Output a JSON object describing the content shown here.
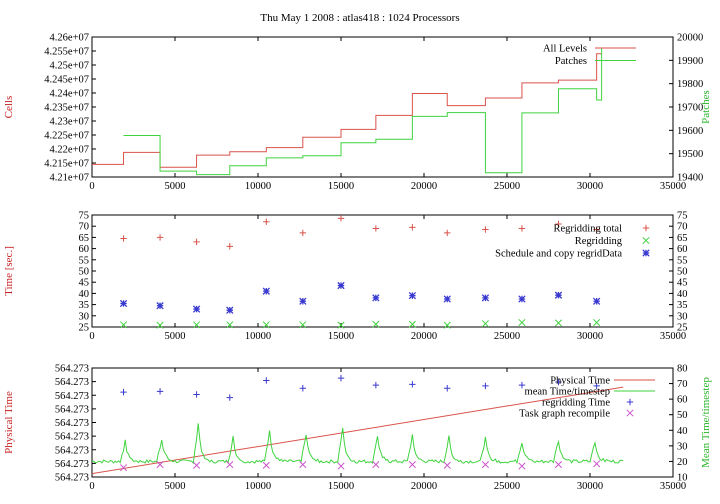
{
  "figure_title": "Thu May 1 2008 : atlas418 : 1024 Processors",
  "colors": {
    "red": "#d9534a",
    "green": "#3fd33f",
    "blue": "#3a3ad0",
    "magenta": "#cc55cc",
    "axis_label_red": "#c82020",
    "axis_label_green": "#28b428"
  },
  "chart_data": [
    {
      "id": "cells",
      "type": "line",
      "ylabel": "Cells",
      "y2label": "Patches",
      "xlim": [
        0,
        35000
      ],
      "ylim": [
        42100000,
        42600000
      ],
      "y2lim": [
        19400,
        20000
      ],
      "xticks": [
        "0",
        "5000",
        "10000",
        "15000",
        "20000",
        "25000",
        "30000",
        "35000"
      ],
      "yticks": [
        "4.21e+07",
        "4.215e+07",
        "4.22e+07",
        "4.225e+07",
        "4.23e+07",
        "4.235e+07",
        "4.24e+07",
        "4.245e+07",
        "4.25e+07",
        "4.255e+07",
        "4.26e+07"
      ],
      "y2ticks": [
        "19400",
        "19500",
        "19600",
        "19700",
        "19800",
        "19900",
        "20000"
      ],
      "legend_position": "top-right",
      "series": [
        {
          "name": "All Levels",
          "color": "red",
          "axis": "y",
          "step": true,
          "x": [
            0,
            1900,
            4100,
            6300,
            8300,
            10500,
            12700,
            15000,
            17100,
            19300,
            21400,
            23700,
            25900,
            28100,
            30400,
            30700
          ],
          "y": [
            42145000,
            42188000,
            42135000,
            42178000,
            42190000,
            42205000,
            42242000,
            42270000,
            42320000,
            42398000,
            42355000,
            42382000,
            42436000,
            42446000,
            42540000,
            42540000
          ]
        },
        {
          "name": "Patches",
          "color": "green",
          "axis": "y2",
          "step": true,
          "x": [
            1900,
            4100,
            6300,
            8300,
            10500,
            12700,
            15000,
            17100,
            19300,
            21400,
            23700,
            25900,
            28100,
            30400,
            30700
          ],
          "y": [
            19578,
            19425,
            19410,
            19448,
            19482,
            19491,
            19547,
            19562,
            19660,
            19676,
            19418,
            19675,
            19778,
            19730,
            19955
          ]
        }
      ]
    },
    {
      "id": "time",
      "type": "scatter",
      "ylabel": "Time [sec.]",
      "xlim": [
        0,
        35000
      ],
      "ylim": [
        25,
        75
      ],
      "xticks": [
        "0",
        "5000",
        "10000",
        "15000",
        "20000",
        "25000",
        "30000",
        "35000"
      ],
      "yticks": [
        "25",
        "30",
        "35",
        "40",
        "45",
        "50",
        "55",
        "60",
        "65",
        "70",
        "75"
      ],
      "legend_position": "top-right",
      "x": [
        1900,
        4100,
        6300,
        8300,
        10500,
        12700,
        15000,
        17100,
        19300,
        21400,
        23700,
        25900,
        28100,
        30400
      ],
      "series": [
        {
          "name": "Regridding total",
          "marker": "+",
          "color": "red",
          "values": [
            64.5,
            65,
            63,
            61,
            72,
            67,
            73.5,
            69,
            69.5,
            67,
            68.5,
            69,
            71,
            68.5
          ]
        },
        {
          "name": "Regridding",
          "marker": "x",
          "color": "green",
          "values": [
            26,
            25.8,
            26,
            26,
            26,
            26,
            25.8,
            26.2,
            26.2,
            25.8,
            26.5,
            27,
            26.8,
            27
          ]
        },
        {
          "name": "Schedule and copy regridData",
          "marker": "*",
          "color": "blue",
          "values": [
            35.5,
            34.5,
            33,
            32.5,
            41,
            36.5,
            43.5,
            38,
            39,
            37.5,
            38,
            37.5,
            39.2,
            36.5
          ]
        }
      ]
    },
    {
      "id": "physical",
      "type": "line",
      "ylabel": "Physical Time",
      "y2label": "Mean Time/timestep",
      "xlim": [
        0,
        35000
      ],
      "ylim": [
        0,
        8
      ],
      "y2lim": [
        10,
        80
      ],
      "xticks": [
        "0",
        "5000",
        "10000",
        "15000",
        "20000",
        "25000",
        "30000",
        "35000"
      ],
      "yticks": [
        "564.273",
        "564.273",
        "564.273",
        "564.273",
        "564.273",
        "564.273",
        "564.273",
        "564.273",
        "564.273"
      ],
      "y2ticks": [
        "10",
        "20",
        "30",
        "40",
        "50",
        "60",
        "70",
        "80"
      ],
      "legend_position": "top-right",
      "series": [
        {
          "name": "Physical Time",
          "color": "red",
          "axis": "y",
          "x": [
            0,
            32000
          ],
          "y": [
            0.25,
            6.6
          ]
        },
        {
          "name": "mean Time/timestep",
          "color": "green",
          "axis": "y2",
          "baseline": 20,
          "peaks": [
            {
              "x": 2000,
              "y": 33
            },
            {
              "x": 4200,
              "y": 36
            },
            {
              "x": 6400,
              "y": 45
            },
            {
              "x": 8500,
              "y": 36
            },
            {
              "x": 10700,
              "y": 42
            },
            {
              "x": 12900,
              "y": 38
            },
            {
              "x": 15100,
              "y": 42
            },
            {
              "x": 17200,
              "y": 38
            },
            {
              "x": 19300,
              "y": 37
            },
            {
              "x": 21500,
              "y": 36
            },
            {
              "x": 23700,
              "y": 35
            },
            {
              "x": 25900,
              "y": 34
            },
            {
              "x": 28100,
              "y": 35
            },
            {
              "x": 30300,
              "y": 33
            }
          ],
          "x_end": 32000
        },
        {
          "name": "regridding Time",
          "marker": "+",
          "color": "blue",
          "axis": "y2",
          "x": [
            1900,
            4100,
            6300,
            8300,
            10500,
            12700,
            15000,
            17100,
            19300,
            21400,
            23700,
            25900,
            28100,
            30400
          ],
          "values": [
            64.5,
            65,
            63,
            61,
            72,
            67,
            73.5,
            69,
            69.5,
            67,
            68.5,
            69,
            71,
            68.5
          ]
        },
        {
          "name": "Task graph recompile",
          "marker": "x",
          "color": "magenta",
          "axis": "y2",
          "x": [
            1900,
            4100,
            6300,
            8300,
            10500,
            12700,
            15000,
            17100,
            19300,
            21400,
            23700,
            25900,
            28100,
            30400
          ],
          "values": [
            16,
            18,
            17.5,
            18,
            17.5,
            18,
            17,
            18,
            18,
            17.5,
            18,
            17,
            18,
            18.5
          ]
        }
      ]
    }
  ]
}
